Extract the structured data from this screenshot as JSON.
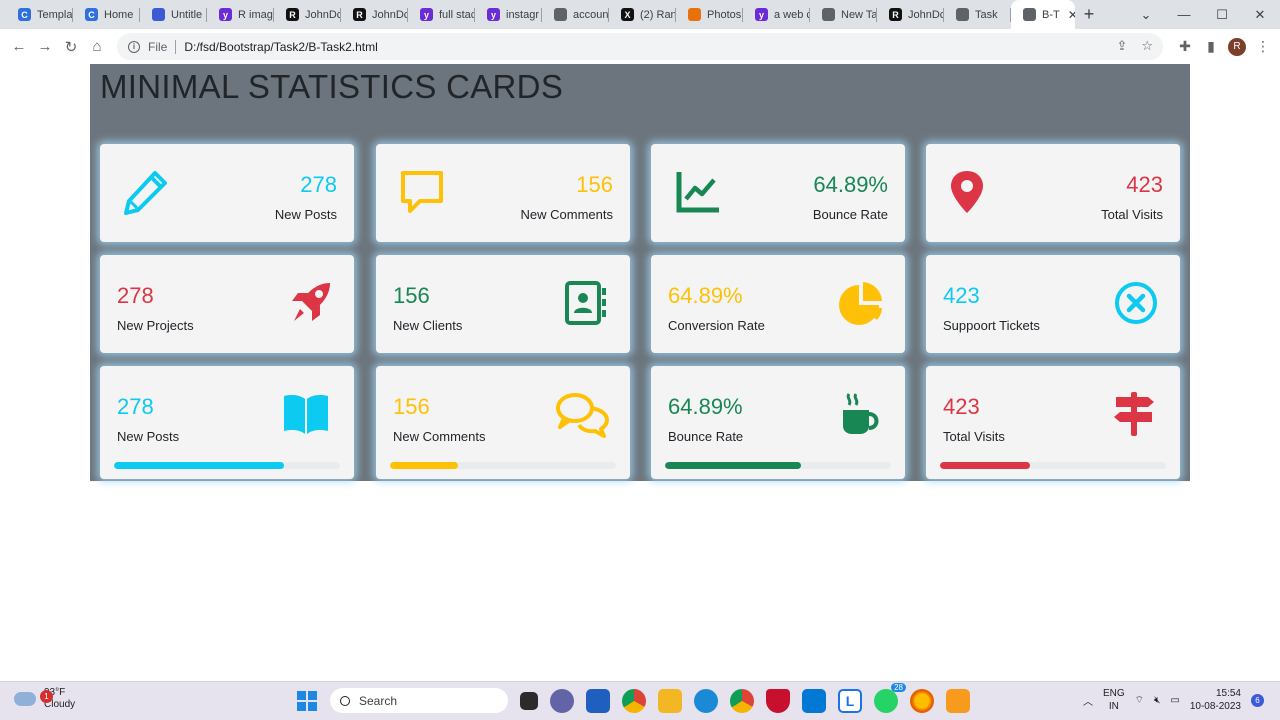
{
  "browser": {
    "tabs": [
      {
        "label": "Templa",
        "color": "#2f6fe0",
        "glyph": "C"
      },
      {
        "label": "Home",
        "color": "#2f6fe0",
        "glyph": "C"
      },
      {
        "label": "Untitle",
        "color": "#3c5ad6",
        "glyph": ""
      },
      {
        "label": "R imag",
        "color": "#6b2bd6",
        "glyph": "y"
      },
      {
        "label": "JohnDc",
        "color": "#111111",
        "glyph": "R"
      },
      {
        "label": "JohnDc",
        "color": "#111111",
        "glyph": "R"
      },
      {
        "label": "full stac",
        "color": "#6b2bd6",
        "glyph": "y"
      },
      {
        "label": "instagr",
        "color": "#6b2bd6",
        "glyph": "y"
      },
      {
        "label": "accoun",
        "color": "#5f6368",
        "glyph": ""
      },
      {
        "label": "(2) Ran",
        "color": "#111111",
        "glyph": "X"
      },
      {
        "label": "Photos",
        "color": "#e8710a",
        "glyph": ""
      },
      {
        "label": "a web c",
        "color": "#6b2bd6",
        "glyph": "y"
      },
      {
        "label": "New Ta",
        "color": "#5f6368",
        "glyph": ""
      },
      {
        "label": "JohnDc",
        "color": "#111111",
        "glyph": "R"
      },
      {
        "label": "Task",
        "color": "#5f6368",
        "glyph": ""
      }
    ],
    "active_tab": {
      "label": "B-T",
      "color": "#5f6368"
    },
    "address": {
      "scheme": "File",
      "path": "D:/fsd/Bootstrap/Task2/B-Task2.html"
    },
    "profile_initial": "R"
  },
  "page": {
    "title": "MINIMAL STATISTICS CARDS",
    "colors": {
      "info": "#0dcaf0",
      "warning": "#ffc107",
      "success": "#198754",
      "danger": "#dc3545"
    },
    "row1": [
      {
        "value": "278",
        "label": "New Posts",
        "icon": "pencil-icon",
        "color": "#0dcaf0"
      },
      {
        "value": "156",
        "label": "New Comments",
        "icon": "speech-bubble-icon",
        "color": "#ffc107"
      },
      {
        "value": "64.89%",
        "label": "Bounce Rate",
        "icon": "line-graph-icon",
        "color": "#198754"
      },
      {
        "value": "423",
        "label": "Total Visits",
        "icon": "map-pin-icon",
        "color": "#dc3545"
      }
    ],
    "row2": [
      {
        "value": "278",
        "label": "New Projects",
        "icon": "rocket-icon",
        "color": "#dc3545"
      },
      {
        "value": "156",
        "label": "New Clients",
        "icon": "contact-book-icon",
        "color": "#198754"
      },
      {
        "value": "64.89%",
        "label": "Conversion Rate",
        "icon": "pie-chart-icon",
        "color": "#ffc107"
      },
      {
        "value": "423",
        "label": "Suppoort Tickets",
        "icon": "circle-x-icon",
        "color": "#0dcaf0"
      }
    ],
    "row3": [
      {
        "value": "278",
        "label": "New Posts",
        "icon": "open-book-icon",
        "color": "#0dcaf0",
        "progress": 0.75
      },
      {
        "value": "156",
        "label": "New Comments",
        "icon": "chat-bubbles-icon",
        "color": "#ffc107",
        "progress": 0.3
      },
      {
        "value": "64.89%",
        "label": "Bounce Rate",
        "icon": "coffee-cup-icon",
        "color": "#198754",
        "progress": 0.6
      },
      {
        "value": "423",
        "label": "Total Visits",
        "icon": "signpost-icon",
        "color": "#dc3545",
        "progress": 0.4
      }
    ]
  },
  "taskbar": {
    "weather": {
      "temp": "93°F",
      "condition": "Cloudy",
      "badge": "1"
    },
    "search_placeholder": "Search",
    "lang": {
      "line1": "ENG",
      "line2": "IN"
    },
    "time": "15:54",
    "date": "10-08-2023",
    "notification_count": "6",
    "whatsapp_badge": "28"
  }
}
